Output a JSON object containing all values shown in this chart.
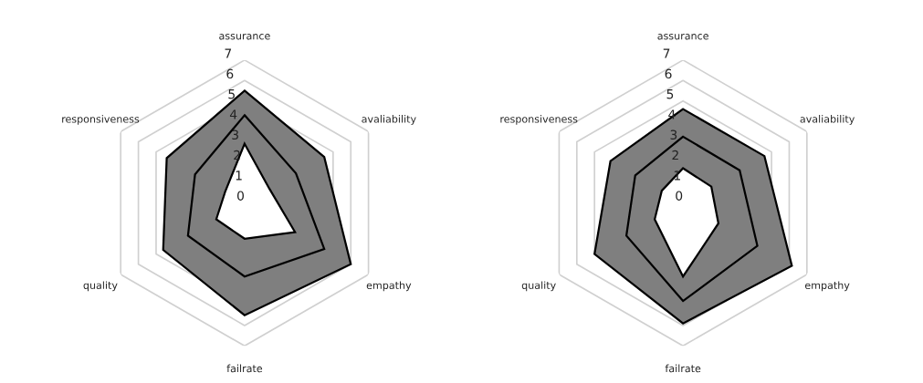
{
  "chart_data": [
    {
      "type": "radar",
      "categories": [
        "assurance",
        "avaliability",
        "empathy",
        "failrate",
        "quality",
        "responsiveness"
      ],
      "ylim": [
        0,
        7
      ],
      "yticks": [
        0,
        1,
        2,
        3,
        4,
        5,
        6,
        7
      ],
      "grid": true,
      "series": [
        {
          "color": "#7f7f7f",
          "values": [
            5.5,
            4.5,
            6.0,
            5.5,
            4.6,
            4.4
          ]
        },
        {
          "color": "#7f7f7f",
          "values": [
            4.3,
            2.9,
            4.5,
            3.6,
            3.2,
            2.8
          ]
        },
        {
          "color": "#ffffff",
          "values": [
            2.9,
            1.4,
            2.85,
            1.75,
            1.6,
            1.1
          ]
        }
      ]
    },
    {
      "type": "radar",
      "categories": [
        "assurance",
        "avaliability",
        "empathy",
        "failrate",
        "quality",
        "responsiveness"
      ],
      "ylim": [
        0,
        7
      ],
      "yticks": [
        0,
        1,
        2,
        3,
        4,
        5,
        6,
        7
      ],
      "grid": true,
      "series": [
        {
          "color": "#7f7f7f",
          "values": [
            4.6,
            4.6,
            6.15,
            5.9,
            5.0,
            4.1
          ]
        },
        {
          "color": "#7f7f7f",
          "values": [
            3.25,
            3.2,
            4.2,
            4.8,
            3.2,
            2.7
          ]
        },
        {
          "color": "#ffffff",
          "values": [
            1.7,
            1.6,
            2.0,
            3.6,
            1.6,
            1.2
          ]
        }
      ]
    }
  ]
}
